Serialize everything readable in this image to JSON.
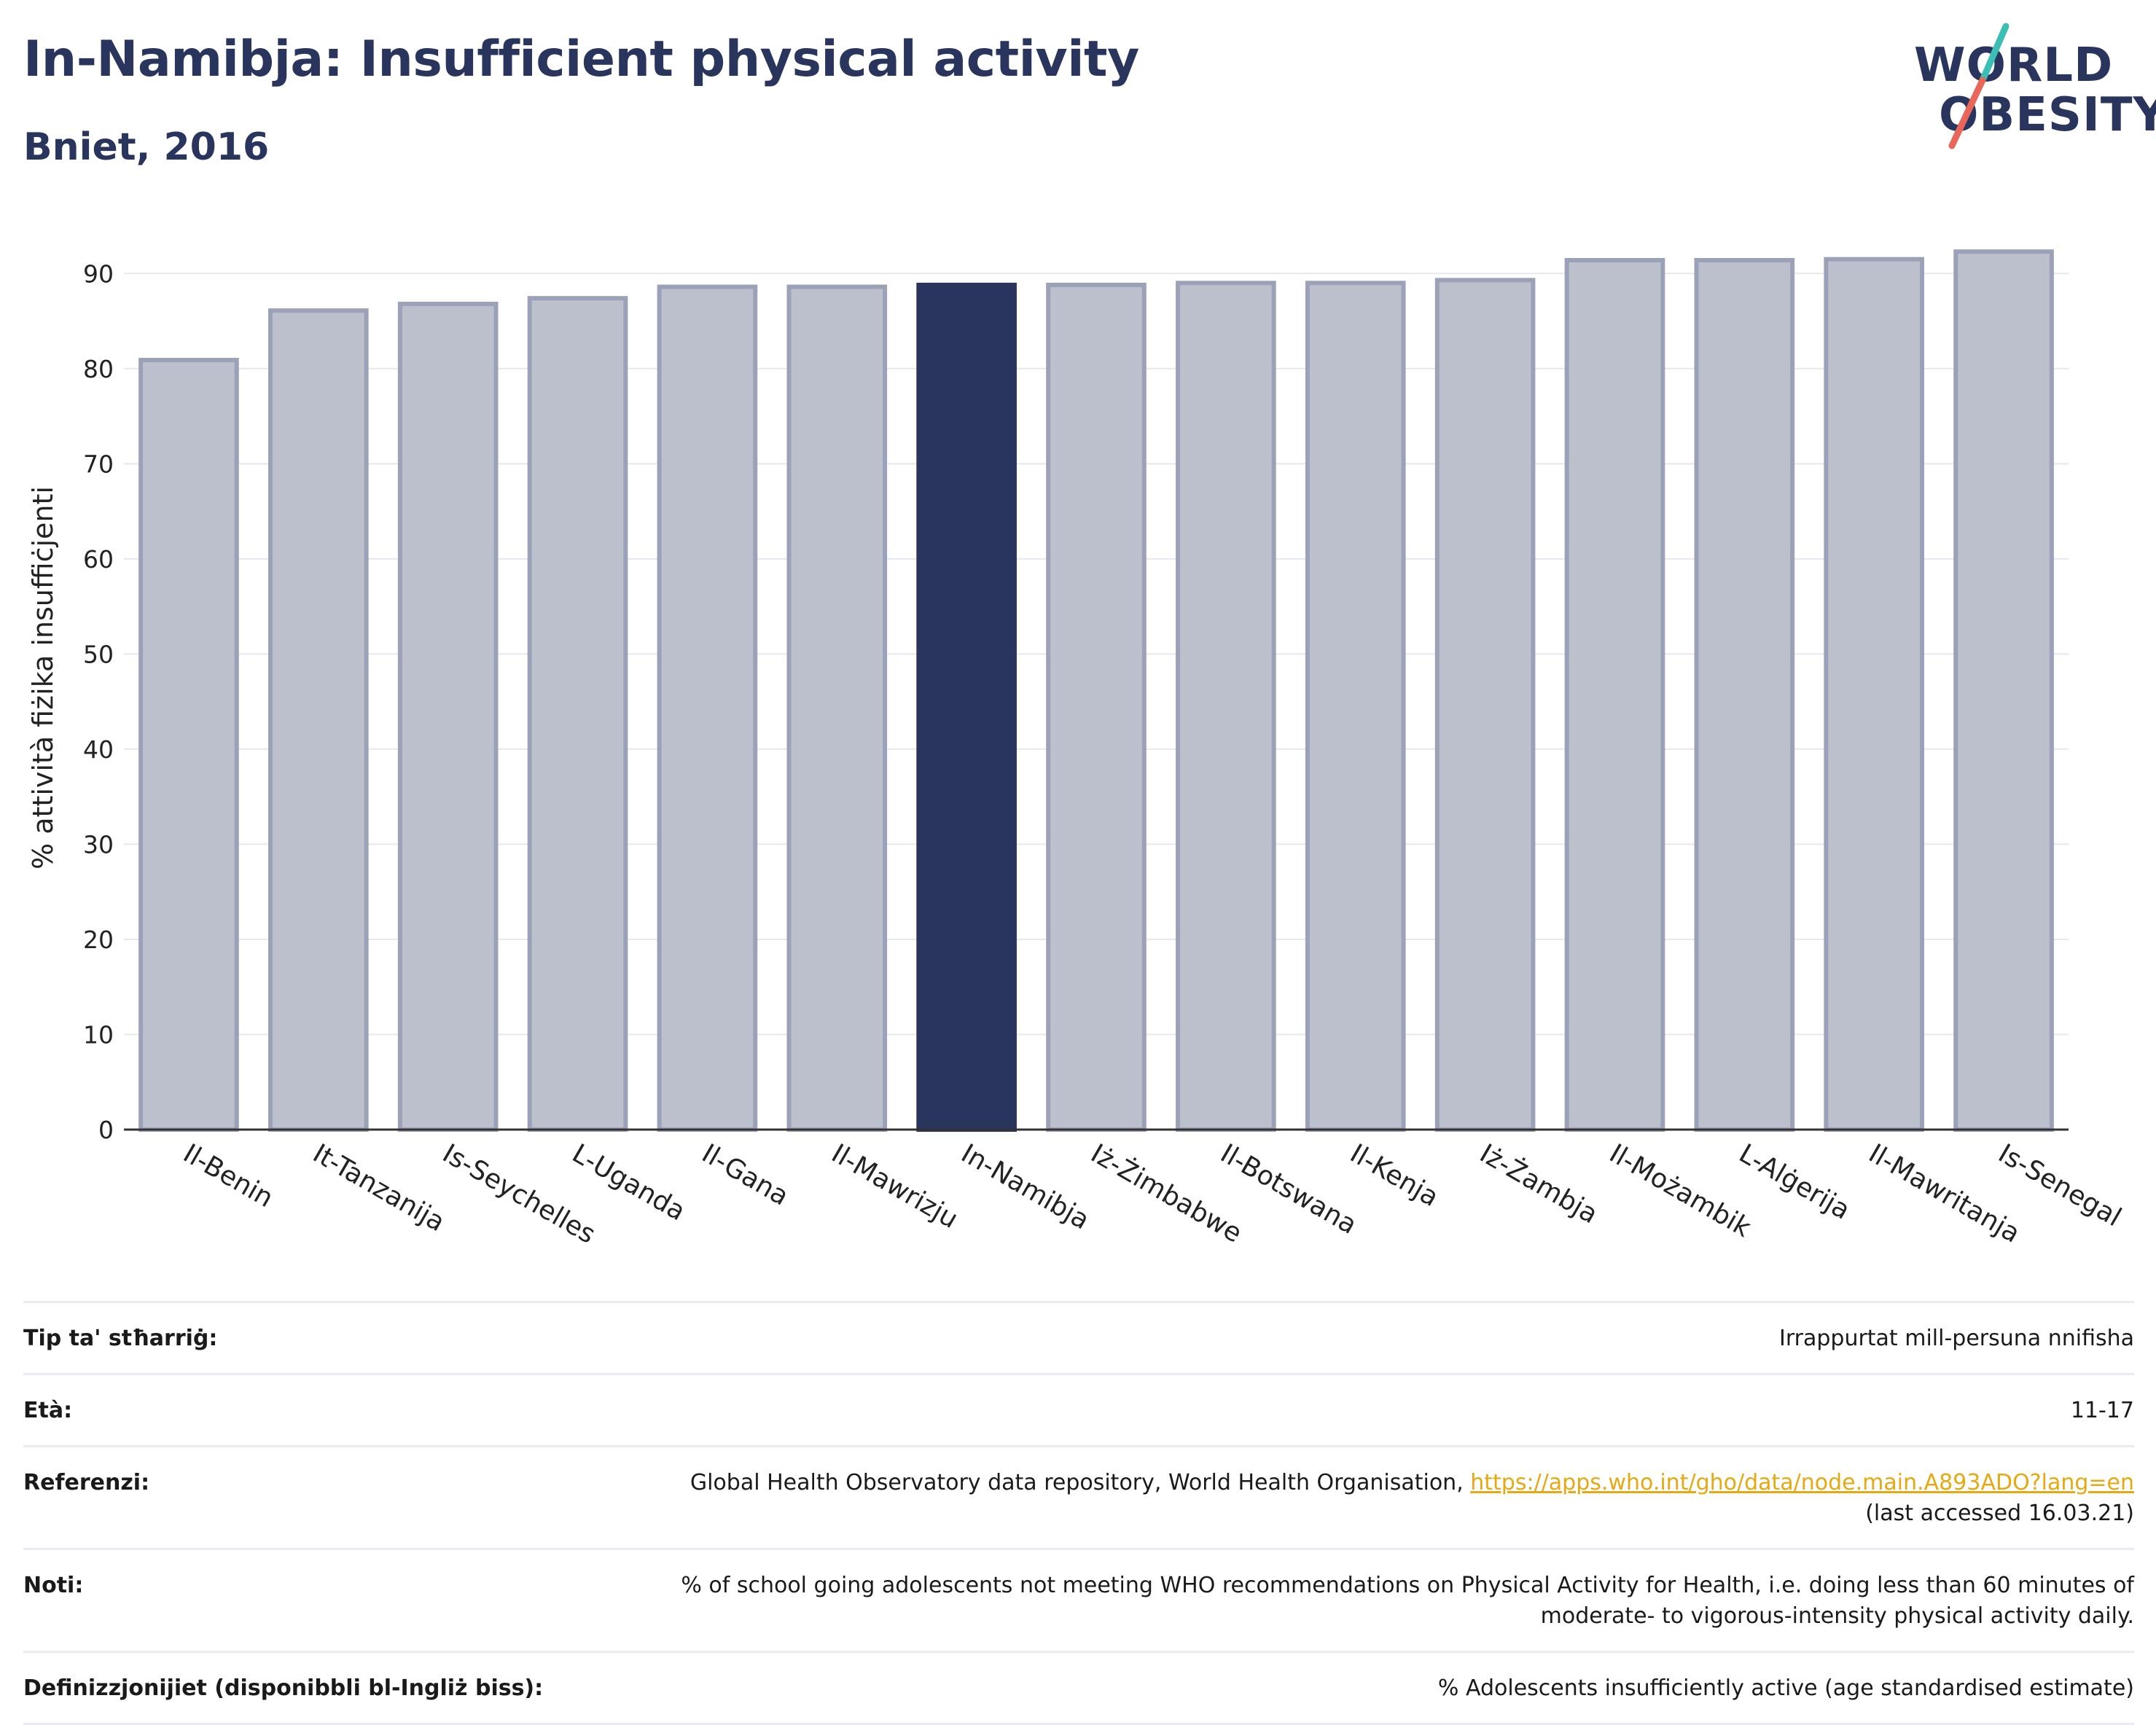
{
  "header": {
    "title": "In-Namibja: Insufficient physical activity",
    "subtitle": "Bniet, 2016"
  },
  "logo": {
    "line1": "WORLD",
    "line2": "OBESITY"
  },
  "chart_data": {
    "type": "bar",
    "ylabel": "% attività fiżika insuffiċjenti",
    "xlabel": "",
    "ylim": [
      0,
      95
    ],
    "yticks": [
      0,
      10,
      20,
      30,
      40,
      50,
      60,
      70,
      80,
      90
    ],
    "grid": true,
    "categories": [
      "Il-Benin",
      "It-Tanzanija",
      "Is-Seychelles",
      "L-Uganda",
      "Il-Gana",
      "Il-Mawrizju",
      "In-Namibja",
      "Iż-Żimbabwe",
      "Il-Botswana",
      "Il-Kenja",
      "Iż-Żambja",
      "Il-Możambik",
      "L-Alġerija",
      "Il-Mawritanja",
      "Is-Senegal"
    ],
    "values": [
      80.9,
      86.1,
      86.8,
      87.4,
      88.6,
      88.6,
      88.8,
      88.8,
      89.0,
      89.0,
      89.3,
      91.4,
      91.4,
      91.5,
      92.3
    ],
    "highlight": "In-Namibja",
    "colors": {
      "bar": "#bcc0cd",
      "bar_edge": "#9ba1b6",
      "highlight": "#2a355e"
    }
  },
  "meta": [
    {
      "label": "Tip ta' stħarriġ:",
      "value": "Irrappurtat mill-persuna nnifisha"
    },
    {
      "label": "Età:",
      "value": "11-17"
    },
    {
      "label": "Referenzi:",
      "value": "Global Health Observatory data repository, World Health Organisation, ",
      "link": "https://apps.who.int/gho/data/node.main.A893ADO?lang=en",
      "value2": "(last accessed 16.03.21)"
    },
    {
      "label": "Noti:",
      "value": "% of school going adolescents not meeting WHO recommendations on Physical Activity for Health, i.e. doing less than 60 minutes of moderate- to vigorous-intensity physical activity daily."
    },
    {
      "label": "Definizzjonijiet (disponibbli bl-Ingliż biss):",
      "value": "% Adolescents insufficiently active (age standardised estimate)"
    }
  ]
}
